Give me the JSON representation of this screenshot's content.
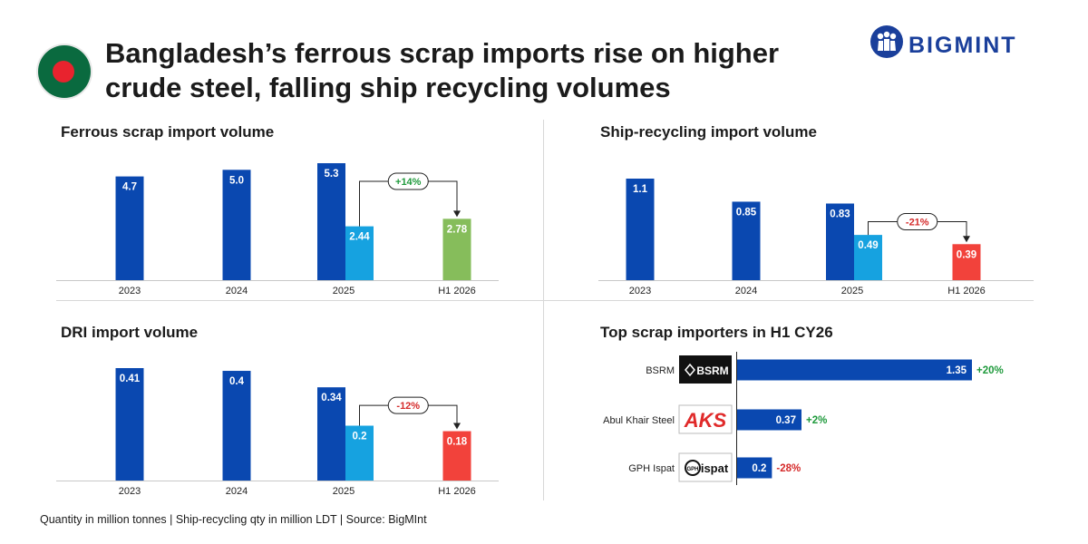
{
  "title": "Bangladesh’s ferrous scrap imports rise on higher crude steel, falling ship recycling volumes",
  "brand": {
    "name": "BIGMINT",
    "color": "#1a3f9b"
  },
  "colors": {
    "dark_blue": "#0a48b0",
    "light_blue": "#16a2e0",
    "green": "#86bd5b",
    "red": "#f2423b",
    "pos_text": "#1f9a3c",
    "neg_text": "#d52a2a"
  },
  "footer": "Quantity in million tonnes  |  Ship-recycling qty in million LDT  |  Source: BigMInt",
  "chart_data": [
    {
      "id": "ferrous",
      "type": "bar",
      "title": "Ferrous scrap import volume",
      "categories": [
        "2023",
        "2024",
        "2025",
        "H1 2026"
      ],
      "bars": [
        {
          "category": "2023",
          "value": 4.7,
          "label": "4.7",
          "color": "dark_blue"
        },
        {
          "category": "2024",
          "value": 5.0,
          "label": "5.0",
          "color": "dark_blue"
        },
        {
          "category": "2025",
          "value": 5.3,
          "label": "5.3",
          "color": "dark_blue"
        },
        {
          "category": "2025",
          "value": 2.44,
          "label": "2.44",
          "color": "light_blue"
        },
        {
          "category": "H1 2026",
          "value": 2.78,
          "label": "2.78",
          "color": "green"
        }
      ],
      "change": {
        "label": "+14%",
        "sign": "pos"
      },
      "ylim": [
        0,
        5.3
      ]
    },
    {
      "id": "ship",
      "type": "bar",
      "title": "Ship-recycling import volume",
      "categories": [
        "2023",
        "2024",
        "2025",
        "H1 2026"
      ],
      "bars": [
        {
          "category": "2023",
          "value": 1.1,
          "label": "1.1",
          "color": "dark_blue"
        },
        {
          "category": "2024",
          "value": 0.85,
          "label": "0.85",
          "color": "dark_blue"
        },
        {
          "category": "2025",
          "value": 0.83,
          "label": "0.83",
          "color": "dark_blue"
        },
        {
          "category": "2025",
          "value": 0.49,
          "label": "0.49",
          "color": "light_blue"
        },
        {
          "category": "H1 2026",
          "value": 0.39,
          "label": "0.39",
          "color": "red"
        }
      ],
      "change": {
        "label": "-21%",
        "sign": "neg"
      },
      "ylim": [
        0,
        1.1
      ]
    },
    {
      "id": "dri",
      "type": "bar",
      "title": "DRI import volume",
      "categories": [
        "2023",
        "2024",
        "2025",
        "H1 2026"
      ],
      "bars": [
        {
          "category": "2023",
          "value": 0.41,
          "label": "0.41",
          "color": "dark_blue"
        },
        {
          "category": "2024",
          "value": 0.4,
          "label": "0.4",
          "color": "dark_blue"
        },
        {
          "category": "2025",
          "value": 0.34,
          "label": "0.34",
          "color": "dark_blue"
        },
        {
          "category": "2025",
          "value": 0.2,
          "label": "0.2",
          "color": "light_blue"
        },
        {
          "category": "H1 2026",
          "value": 0.18,
          "label": "0.18",
          "color": "red"
        }
      ],
      "change": {
        "label": "-12%",
        "sign": "neg"
      },
      "ylim": [
        0,
        0.41
      ]
    },
    {
      "id": "importers",
      "type": "bar",
      "orientation": "horizontal",
      "title": "Top scrap importers in H1 CY26",
      "rows": [
        {
          "name": "BSRM",
          "value": 1.35,
          "label": "1.35",
          "change": "+20%",
          "sign": "pos",
          "logo": "BSRM"
        },
        {
          "name": "Abul Khair Steel",
          "value": 0.37,
          "label": "0.37",
          "change": "+2%",
          "sign": "pos",
          "logo": "AKS"
        },
        {
          "name": "GPH Ispat",
          "value": 0.2,
          "label": "0.2",
          "change": "-28%",
          "sign": "neg",
          "logo": "GPH ispat"
        }
      ],
      "xlim": [
        0,
        1.35
      ]
    }
  ]
}
